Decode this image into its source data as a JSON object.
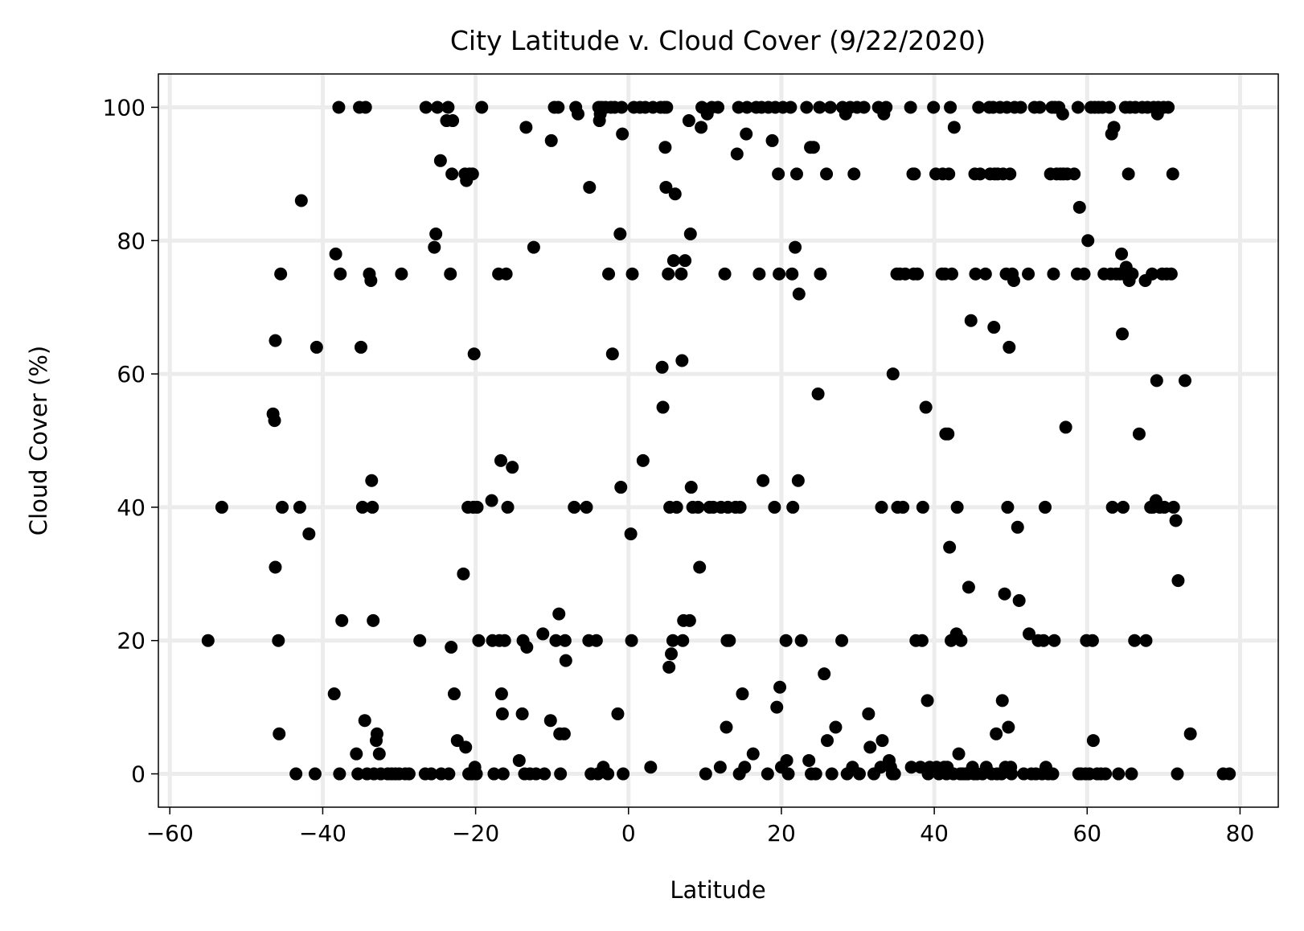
{
  "chart_data": {
    "type": "scatter",
    "title": "City Latitude v. Cloud Cover (9/22/2020)",
    "xlabel": "Latitude",
    "ylabel": "Cloud Cover (%)",
    "xlim": [
      -61.5,
      85
    ],
    "ylim": [
      -5,
      105
    ],
    "xticks": [
      -60,
      -40,
      -20,
      0,
      20,
      40,
      60,
      80
    ],
    "yticks": [
      0,
      20,
      40,
      60,
      80,
      100
    ],
    "grid": true,
    "point_color": "#000000",
    "points": [
      [
        -55,
        20
      ],
      [
        -53.2,
        40
      ],
      [
        -46.5,
        54
      ],
      [
        -46.3,
        53
      ],
      [
        -46.2,
        65
      ],
      [
        -46.2,
        31
      ],
      [
        -45.8,
        20
      ],
      [
        -45.7,
        6
      ],
      [
        -45.5,
        75
      ],
      [
        -45.3,
        40
      ],
      [
        -43.5,
        0
      ],
      [
        -43,
        40
      ],
      [
        -42.8,
        86
      ],
      [
        -41.8,
        36
      ],
      [
        -41,
        0
      ],
      [
        -40.8,
        64
      ],
      [
        -38.5,
        12
      ],
      [
        -38.3,
        78
      ],
      [
        -37.9,
        100
      ],
      [
        -37.8,
        0
      ],
      [
        -37.7,
        75
      ],
      [
        -37.5,
        23
      ],
      [
        -35.6,
        3
      ],
      [
        -35.4,
        0
      ],
      [
        -35.2,
        100
      ],
      [
        -35,
        64
      ],
      [
        -34.8,
        40
      ],
      [
        -34.5,
        8
      ],
      [
        -34.4,
        100
      ],
      [
        -34.2,
        0
      ],
      [
        -33.9,
        75
      ],
      [
        -33.7,
        74
      ],
      [
        -33.6,
        44
      ],
      [
        -33.5,
        40
      ],
      [
        -33.4,
        23
      ],
      [
        -33.3,
        0
      ],
      [
        -33,
        5
      ],
      [
        -32.9,
        6
      ],
      [
        -32.6,
        3
      ],
      [
        -32.4,
        0
      ],
      [
        -31.5,
        0
      ],
      [
        -31,
        0
      ],
      [
        -30.5,
        0
      ],
      [
        -30,
        0
      ],
      [
        -29.7,
        75
      ],
      [
        -29.2,
        0
      ],
      [
        -28.7,
        0
      ],
      [
        -27.3,
        20
      ],
      [
        -26.6,
        0
      ],
      [
        -26.5,
        100
      ],
      [
        -25.8,
        0
      ],
      [
        -25.4,
        79
      ],
      [
        -25.2,
        81
      ],
      [
        -25,
        100
      ],
      [
        -24.6,
        92
      ],
      [
        -24.5,
        0
      ],
      [
        -23.8,
        98
      ],
      [
        -23.6,
        100
      ],
      [
        -23.5,
        0
      ],
      [
        -23.3,
        75
      ],
      [
        -23.2,
        19
      ],
      [
        -23.1,
        90
      ],
      [
        -23,
        98
      ],
      [
        -22.8,
        12
      ],
      [
        -22.4,
        5
      ],
      [
        -21.6,
        30
      ],
      [
        -21.4,
        90
      ],
      [
        -21.3,
        4
      ],
      [
        -21.2,
        89
      ],
      [
        -21,
        40
      ],
      [
        -20.9,
        0
      ],
      [
        -20.8,
        90
      ],
      [
        -20.5,
        0
      ],
      [
        -20.4,
        90
      ],
      [
        -20.3,
        40
      ],
      [
        -20.2,
        63
      ],
      [
        -20.1,
        1
      ],
      [
        -19.9,
        0
      ],
      [
        -19.8,
        40
      ],
      [
        -19.6,
        20
      ],
      [
        -19.2,
        100
      ],
      [
        -17.9,
        41
      ],
      [
        -17.8,
        20
      ],
      [
        -17.6,
        0
      ],
      [
        -17,
        75
      ],
      [
        -16.9,
        20
      ],
      [
        -16.7,
        47
      ],
      [
        -16.6,
        12
      ],
      [
        -16.5,
        9
      ],
      [
        -16.4,
        0
      ],
      [
        -16.2,
        20
      ],
      [
        -16,
        75
      ],
      [
        -15.8,
        40
      ],
      [
        -15.2,
        46
      ],
      [
        -14.3,
        2
      ],
      [
        -13.9,
        9
      ],
      [
        -13.8,
        20
      ],
      [
        -13.6,
        0
      ],
      [
        -13.4,
        97
      ],
      [
        -13.3,
        19
      ],
      [
        -12.9,
        0
      ],
      [
        -12.4,
        79
      ],
      [
        -12.1,
        0
      ],
      [
        -11.2,
        21
      ],
      [
        -11,
        0
      ],
      [
        -10.2,
        8
      ],
      [
        -10.1,
        95
      ],
      [
        -9.7,
        100
      ],
      [
        -9.5,
        20
      ],
      [
        -9.2,
        100
      ],
      [
        -9.1,
        24
      ],
      [
        -9,
        6
      ],
      [
        -8.9,
        0
      ],
      [
        -8.4,
        6
      ],
      [
        -8.3,
        20
      ],
      [
        -8.2,
        17
      ],
      [
        -7.1,
        40
      ],
      [
        -6.9,
        100
      ],
      [
        -6.6,
        99
      ],
      [
        -5.5,
        40
      ],
      [
        -5.2,
        20
      ],
      [
        -5.1,
        88
      ],
      [
        -4.9,
        0
      ],
      [
        -4.2,
        20
      ],
      [
        -4,
        0
      ],
      [
        -3.9,
        100
      ],
      [
        -3.8,
        98
      ],
      [
        -3.7,
        99
      ],
      [
        -3.5,
        100
      ],
      [
        -3.3,
        1
      ],
      [
        -3,
        100
      ],
      [
        -2.7,
        0
      ],
      [
        -2.6,
        75
      ],
      [
        -2.3,
        100
      ],
      [
        -2.1,
        63
      ],
      [
        -1.8,
        100
      ],
      [
        -1.4,
        9
      ],
      [
        -1.1,
        81
      ],
      [
        -1,
        43
      ],
      [
        -0.9,
        100
      ],
      [
        -0.8,
        96
      ],
      [
        -0.7,
        0
      ],
      [
        0.3,
        36
      ],
      [
        0.4,
        20
      ],
      [
        0.5,
        75
      ],
      [
        0.7,
        100
      ],
      [
        1.5,
        100
      ],
      [
        1.9,
        47
      ],
      [
        2.2,
        100
      ],
      [
        2.9,
        1
      ],
      [
        3.2,
        100
      ],
      [
        4.2,
        100
      ],
      [
        4.4,
        61
      ],
      [
        4.5,
        55
      ],
      [
        4.7,
        100
      ],
      [
        4.8,
        94
      ],
      [
        4.9,
        88
      ],
      [
        5,
        100
      ],
      [
        5.2,
        75
      ],
      [
        5.3,
        16
      ],
      [
        5.4,
        40
      ],
      [
        5.6,
        18
      ],
      [
        5.8,
        20
      ],
      [
        5.9,
        77
      ],
      [
        6.1,
        87
      ],
      [
        6.3,
        40
      ],
      [
        6.9,
        75
      ],
      [
        7,
        62
      ],
      [
        7.1,
        20
      ],
      [
        7.2,
        23
      ],
      [
        7.4,
        77
      ],
      [
        7.9,
        98
      ],
      [
        8,
        23
      ],
      [
        8.1,
        81
      ],
      [
        8.2,
        43
      ],
      [
        8.4,
        40
      ],
      [
        9.1,
        40
      ],
      [
        9.3,
        31
      ],
      [
        9.5,
        97
      ],
      [
        9.6,
        100
      ],
      [
        10.1,
        0
      ],
      [
        10.3,
        99
      ],
      [
        10.6,
        40
      ],
      [
        10.9,
        100
      ],
      [
        11.1,
        40
      ],
      [
        11.7,
        100
      ],
      [
        12,
        1
      ],
      [
        12.1,
        40
      ],
      [
        12.6,
        75
      ],
      [
        12.8,
        7
      ],
      [
        12.9,
        20
      ],
      [
        13,
        40
      ],
      [
        13.2,
        20
      ],
      [
        14,
        40
      ],
      [
        14.2,
        93
      ],
      [
        14.4,
        100
      ],
      [
        14.5,
        0
      ],
      [
        14.6,
        40
      ],
      [
        14.9,
        12
      ],
      [
        15.2,
        1
      ],
      [
        15.4,
        96
      ],
      [
        15.5,
        100
      ],
      [
        16.3,
        3
      ],
      [
        16.7,
        100
      ],
      [
        17.1,
        75
      ],
      [
        17.4,
        100
      ],
      [
        17.6,
        44
      ],
      [
        18.2,
        0
      ],
      [
        18.3,
        100
      ],
      [
        18.8,
        95
      ],
      [
        19.1,
        40
      ],
      [
        19.2,
        100
      ],
      [
        19.4,
        10
      ],
      [
        19.6,
        90
      ],
      [
        19.7,
        75
      ],
      [
        19.8,
        13
      ],
      [
        20,
        1
      ],
      [
        20.2,
        100
      ],
      [
        20.6,
        20
      ],
      [
        20.7,
        2
      ],
      [
        20.9,
        0
      ],
      [
        21.2,
        100
      ],
      [
        21.4,
        75
      ],
      [
        21.5,
        40
      ],
      [
        21.8,
        79
      ],
      [
        22,
        90
      ],
      [
        22.2,
        44
      ],
      [
        22.3,
        72
      ],
      [
        22.6,
        20
      ],
      [
        23.3,
        100
      ],
      [
        23.6,
        2
      ],
      [
        23.8,
        94
      ],
      [
        23.9,
        0
      ],
      [
        24.2,
        94
      ],
      [
        24.5,
        0
      ],
      [
        24.8,
        57
      ],
      [
        25,
        100
      ],
      [
        25.1,
        75
      ],
      [
        25.6,
        15
      ],
      [
        25.9,
        90
      ],
      [
        26,
        5
      ],
      [
        26.4,
        100
      ],
      [
        26.6,
        0
      ],
      [
        27.1,
        7
      ],
      [
        27.9,
        20
      ],
      [
        28,
        100
      ],
      [
        28.4,
        99
      ],
      [
        28.6,
        0
      ],
      [
        29,
        100
      ],
      [
        29.3,
        1
      ],
      [
        29.5,
        90
      ],
      [
        29.9,
        100
      ],
      [
        30.2,
        0
      ],
      [
        30.8,
        100
      ],
      [
        31.4,
        9
      ],
      [
        31.6,
        4
      ],
      [
        32.1,
        0
      ],
      [
        32.7,
        100
      ],
      [
        33,
        1
      ],
      [
        33.1,
        40
      ],
      [
        33.2,
        5
      ],
      [
        33.4,
        99
      ],
      [
        33.7,
        100
      ],
      [
        34.1,
        2
      ],
      [
        34.3,
        1
      ],
      [
        34.5,
        0
      ],
      [
        34.6,
        60
      ],
      [
        34.8,
        0
      ],
      [
        35.1,
        75
      ],
      [
        35.2,
        40
      ],
      [
        35.5,
        75
      ],
      [
        35.9,
        40
      ],
      [
        36.2,
        75
      ],
      [
        36.9,
        100
      ],
      [
        37,
        1
      ],
      [
        37.2,
        90
      ],
      [
        37.3,
        75
      ],
      [
        37.4,
        90
      ],
      [
        37.6,
        20
      ],
      [
        37.8,
        75
      ],
      [
        38.2,
        1
      ],
      [
        38.4,
        20
      ],
      [
        38.5,
        40
      ],
      [
        38.9,
        55
      ],
      [
        39.1,
        11
      ],
      [
        39.2,
        0
      ],
      [
        39.4,
        1
      ],
      [
        39.9,
        100
      ],
      [
        40.2,
        90
      ],
      [
        40.3,
        1
      ],
      [
        40.6,
        0
      ],
      [
        41,
        75
      ],
      [
        41.1,
        90
      ],
      [
        41.3,
        1
      ],
      [
        41.4,
        75
      ],
      [
        41.5,
        51
      ],
      [
        41.6,
        0
      ],
      [
        41.7,
        1
      ],
      [
        41.8,
        51
      ],
      [
        41.9,
        90
      ],
      [
        42,
        34
      ],
      [
        42.1,
        100
      ],
      [
        42.2,
        20
      ],
      [
        42.3,
        75
      ],
      [
        42.5,
        0
      ],
      [
        42.6,
        97
      ],
      [
        42.9,
        21
      ],
      [
        43,
        40
      ],
      [
        43.2,
        3
      ],
      [
        43.4,
        0
      ],
      [
        43.5,
        20
      ],
      [
        43.7,
        0
      ],
      [
        44.1,
        0
      ],
      [
        44.4,
        0
      ],
      [
        44.5,
        28
      ],
      [
        44.8,
        68
      ],
      [
        45,
        1
      ],
      [
        45.2,
        0
      ],
      [
        45.3,
        90
      ],
      [
        45.4,
        75
      ],
      [
        45.6,
        0
      ],
      [
        45.8,
        100
      ],
      [
        46,
        90
      ],
      [
        46.3,
        0
      ],
      [
        46.7,
        75
      ],
      [
        46.8,
        1
      ],
      [
        47.2,
        100
      ],
      [
        47.3,
        90
      ],
      [
        47.5,
        0
      ],
      [
        47.7,
        100
      ],
      [
        47.8,
        67
      ],
      [
        47.9,
        90
      ],
      [
        48.1,
        6
      ],
      [
        48.2,
        0
      ],
      [
        48.3,
        90
      ],
      [
        48.6,
        100
      ],
      [
        48.8,
        0
      ],
      [
        48.9,
        11
      ],
      [
        49,
        90
      ],
      [
        49.2,
        27
      ],
      [
        49.3,
        1
      ],
      [
        49.4,
        75
      ],
      [
        49.5,
        100
      ],
      [
        49.6,
        40
      ],
      [
        49.7,
        7
      ],
      [
        49.8,
        64
      ],
      [
        49.9,
        90
      ],
      [
        50,
        1
      ],
      [
        50.1,
        0
      ],
      [
        50.2,
        75
      ],
      [
        50.4,
        74
      ],
      [
        50.5,
        100
      ],
      [
        50.9,
        37
      ],
      [
        51.1,
        26
      ],
      [
        51.3,
        100
      ],
      [
        51.7,
        0
      ],
      [
        52.3,
        75
      ],
      [
        52.4,
        21
      ],
      [
        52.7,
        0
      ],
      [
        53.1,
        100
      ],
      [
        53.3,
        0
      ],
      [
        53.6,
        20
      ],
      [
        53.8,
        100
      ],
      [
        54.1,
        0
      ],
      [
        54.3,
        20
      ],
      [
        54.5,
        40
      ],
      [
        54.6,
        1
      ],
      [
        54.9,
        0
      ],
      [
        55.2,
        90
      ],
      [
        55.4,
        100
      ],
      [
        55.5,
        0
      ],
      [
        55.6,
        75
      ],
      [
        55.7,
        20
      ],
      [
        55.8,
        100
      ],
      [
        56,
        90
      ],
      [
        56.3,
        100
      ],
      [
        56.5,
        90
      ],
      [
        56.8,
        99
      ],
      [
        56.9,
        90
      ],
      [
        57.2,
        52
      ],
      [
        57.4,
        90
      ],
      [
        58.3,
        90
      ],
      [
        58.7,
        75
      ],
      [
        58.8,
        100
      ],
      [
        58.9,
        0
      ],
      [
        59,
        85
      ],
      [
        59.2,
        0
      ],
      [
        59.6,
        75
      ],
      [
        59.8,
        0
      ],
      [
        59.9,
        20
      ],
      [
        60.1,
        80
      ],
      [
        60.3,
        0
      ],
      [
        60.5,
        100
      ],
      [
        60.7,
        20
      ],
      [
        60.8,
        5
      ],
      [
        61,
        100
      ],
      [
        61.3,
        0
      ],
      [
        61.5,
        100
      ],
      [
        61.8,
        0
      ],
      [
        62,
        100
      ],
      [
        62.2,
        75
      ],
      [
        62.4,
        0
      ],
      [
        62.9,
        100
      ],
      [
        63.1,
        75
      ],
      [
        63.2,
        96
      ],
      [
        63.3,
        40
      ],
      [
        63.5,
        97
      ],
      [
        63.8,
        75
      ],
      [
        64.1,
        0
      ],
      [
        64.3,
        75
      ],
      [
        64.5,
        78
      ],
      [
        64.6,
        66
      ],
      [
        64.7,
        40
      ],
      [
        64.8,
        75
      ],
      [
        65,
        100
      ],
      [
        65.1,
        76
      ],
      [
        65.3,
        75
      ],
      [
        65.4,
        90
      ],
      [
        65.5,
        74
      ],
      [
        65.6,
        100
      ],
      [
        65.8,
        0
      ],
      [
        65.9,
        75
      ],
      [
        66.2,
        20
      ],
      [
        66.3,
        100
      ],
      [
        66.8,
        51
      ],
      [
        67.2,
        100
      ],
      [
        67.6,
        74
      ],
      [
        67.7,
        20
      ],
      [
        67.9,
        100
      ],
      [
        68.3,
        40
      ],
      [
        68.5,
        75
      ],
      [
        68.6,
        40
      ],
      [
        68.7,
        100
      ],
      [
        69,
        41
      ],
      [
        69.1,
        59
      ],
      [
        69.2,
        99
      ],
      [
        69.3,
        100
      ],
      [
        69.5,
        40
      ],
      [
        69.8,
        75
      ],
      [
        70,
        100
      ],
      [
        70.1,
        40
      ],
      [
        70.4,
        75
      ],
      [
        70.6,
        100
      ],
      [
        71,
        75
      ],
      [
        71.2,
        90
      ],
      [
        71.3,
        40
      ],
      [
        71.6,
        38
      ],
      [
        71.8,
        0
      ],
      [
        71.9,
        29
      ],
      [
        72.8,
        59
      ],
      [
        73.5,
        6
      ],
      [
        77.8,
        0
      ],
      [
        78.6,
        0
      ]
    ]
  }
}
